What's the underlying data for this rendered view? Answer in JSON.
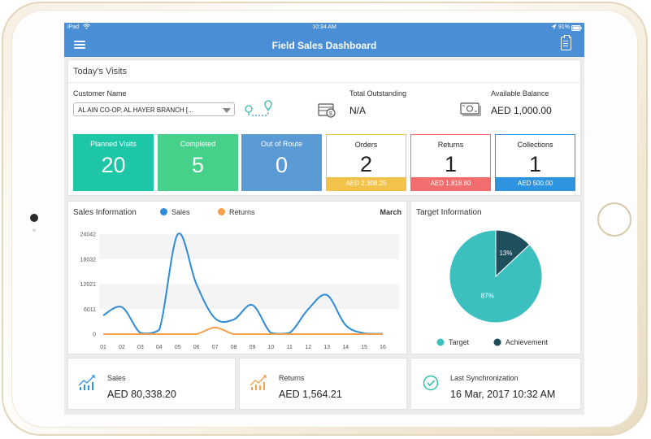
{
  "status": {
    "device": "iPad",
    "time": "10:34 AM",
    "battery": "91%"
  },
  "app": {
    "title": "Field Sales Dashboard",
    "menu_icon": "hamburger-menu-icon",
    "action_icon": "clipboard-icon"
  },
  "visits": {
    "heading": "Today's Visits",
    "customer_label": "Customer Name",
    "customer_value": "AL AIN CO-OP,  AL HAYER BRANCH [...",
    "outstanding_label": "Total Outstanding",
    "outstanding_value": "N/A",
    "balance_label": "Available Balance",
    "balance_value": "AED 1,000.00",
    "tiles": [
      {
        "label": "Planned Visits",
        "value": "20",
        "color": "#1cc6a6"
      },
      {
        "label": "Completed",
        "value": "5",
        "color": "#46d18a"
      },
      {
        "label": "Out of Route",
        "value": "0",
        "color": "#5b9bd5"
      }
    ],
    "outline_tiles": [
      {
        "label": "Orders",
        "value": "2",
        "amount": "AED 2,308.25",
        "color": "#f3c24b"
      },
      {
        "label": "Returns",
        "value": "1",
        "amount": "AED 1,818.80",
        "color": "#f26d6d"
      },
      {
        "label": "Collections",
        "value": "1",
        "amount": "AED 500.00",
        "color": "#2e94e0"
      }
    ]
  },
  "sales_info": {
    "title": "Sales Information",
    "period": "March"
  },
  "target_info": {
    "title": "Target Information"
  },
  "chart_data": [
    {
      "type": "line",
      "title": "Sales Information",
      "x": [
        "01",
        "02",
        "03",
        "04",
        "05",
        "06",
        "07",
        "08",
        "09",
        "10",
        "11",
        "12",
        "13",
        "14",
        "15",
        "16"
      ],
      "y_ticks": [
        "24042",
        "18032",
        "12021",
        "6011",
        "0"
      ],
      "ylim": [
        0,
        24042
      ],
      "series": [
        {
          "name": "Sales",
          "color": "#2e8bd6",
          "values": [
            4500,
            6500,
            300,
            1000,
            24000,
            12000,
            3800,
            3500,
            7000,
            300,
            300,
            6000,
            9400,
            2200,
            200,
            100
          ]
        },
        {
          "name": "Returns",
          "color": "#f5a04a",
          "values": [
            0,
            0,
            0,
            0,
            0,
            0,
            1600,
            0,
            0,
            0,
            0,
            0,
            0,
            0,
            0,
            0
          ]
        }
      ],
      "legend": "top"
    },
    {
      "type": "pie",
      "title": "Target Information",
      "slices": [
        {
          "name": "Target",
          "value": 87,
          "label": "87%",
          "color": "#3bbfbf"
        },
        {
          "name": "Achievement",
          "value": 13,
          "label": "13%",
          "color": "#1f4e5c"
        }
      ],
      "legend": "bottom"
    }
  ],
  "summary": {
    "sales_label": "Sales",
    "sales_value": "AED 80,338.20",
    "returns_label": "Returns",
    "returns_value": "AED 1,564.21",
    "sync_label": "Last Synchronization",
    "sync_value": "16 Mar, 2017 10:32 AM"
  }
}
